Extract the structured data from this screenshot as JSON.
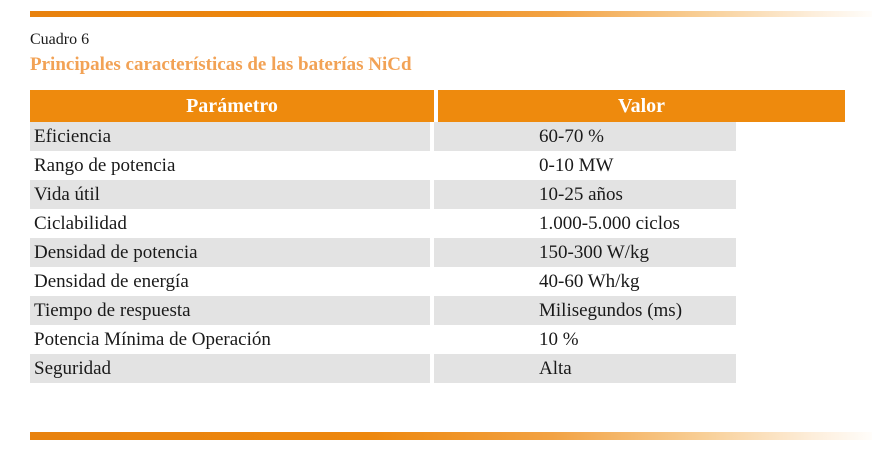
{
  "page": {
    "caption": "Cuadro 6",
    "title": "Principales características de las baterías NiCd"
  },
  "table": {
    "columns": [
      "Parámetro",
      "Valor"
    ],
    "rows": [
      {
        "parametro": "Eficiencia",
        "valor": "60-70 %"
      },
      {
        "parametro": "Rango de potencia",
        "valor": "0-10 MW"
      },
      {
        "parametro": "Vida útil",
        "valor": "10-25 años"
      },
      {
        "parametro": "Ciclabilidad",
        "valor": "1.000-5.000 ciclos"
      },
      {
        "parametro": "Densidad de potencia",
        "valor": "150-300 W/kg"
      },
      {
        "parametro": "Densidad de energía",
        "valor": "40-60 Wh/kg"
      },
      {
        "parametro": "Tiempo de respuesta",
        "valor": "Milisegundos (ms)"
      },
      {
        "parametro": "Potencia Mínima de Operación",
        "valor": "10 %"
      },
      {
        "parametro": "Seguridad",
        "valor": "Alta"
      }
    ]
  },
  "chart_data": {
    "type": "table",
    "title": "Principales características de las baterías NiCd",
    "columns": [
      "Parámetro",
      "Valor"
    ],
    "rows": [
      [
        "Eficiencia",
        "60-70 %"
      ],
      [
        "Rango de potencia",
        "0-10 MW"
      ],
      [
        "Vida útil",
        "10-25 años"
      ],
      [
        "Ciclabilidad",
        "1.000-5.000 ciclos"
      ],
      [
        "Densidad de potencia",
        "150-300 W/kg"
      ],
      [
        "Densidad de energía",
        "40-60 Wh/kg"
      ],
      [
        "Tiempo de respuesta",
        "Milisegundos (ms)"
      ],
      [
        "Potencia Mínima de Operación",
        "10 %"
      ],
      [
        "Seguridad",
        "Alta"
      ]
    ]
  },
  "colors": {
    "header_bg": "#ee8a0d",
    "title_orange": "#f2a255",
    "row_alt_bg": "#e3e3e3",
    "bar_gradient_start": "#e8820e",
    "text": "#1a1a1a"
  }
}
